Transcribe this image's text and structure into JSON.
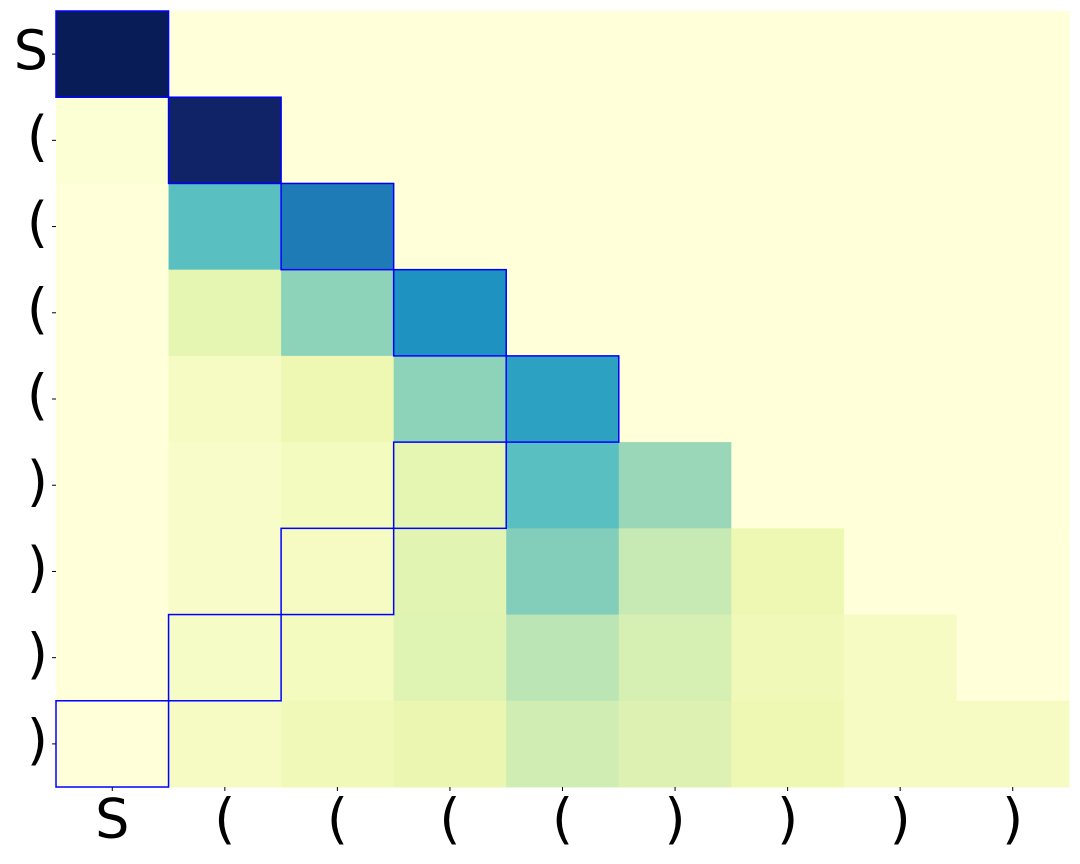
{
  "chart_data": {
    "type": "heatmap",
    "x_categories": [
      "S",
      "(",
      "(",
      "(",
      "(",
      ")",
      ")",
      ")",
      ")"
    ],
    "y_categories": [
      "S",
      "(",
      "(",
      "(",
      "(",
      ")",
      ")",
      ")",
      ")"
    ],
    "values": [
      [
        1.0,
        0,
        0,
        0,
        0,
        0,
        0,
        0,
        0
      ],
      [
        0.02,
        0.97,
        0,
        0,
        0,
        0,
        0,
        0,
        0
      ],
      [
        0.0,
        0.45,
        0.68,
        0,
        0,
        0,
        0,
        0,
        0
      ],
      [
        0.0,
        0.15,
        0.35,
        0.62,
        0,
        0,
        0,
        0,
        0
      ],
      [
        0.0,
        0.07,
        0.12,
        0.35,
        0.57,
        0,
        0,
        0,
        0
      ],
      [
        0.0,
        0.05,
        0.08,
        0.15,
        0.45,
        0.33,
        0,
        0,
        0
      ],
      [
        0.0,
        0.05,
        0.07,
        0.16,
        0.37,
        0.25,
        0.12,
        0,
        0
      ],
      [
        0.0,
        0.06,
        0.08,
        0.17,
        0.27,
        0.2,
        0.1,
        0.07,
        0
      ],
      [
        0.0,
        0.07,
        0.1,
        0.13,
        0.22,
        0.18,
        0.12,
        0.07,
        0.07
      ]
    ],
    "zlim": [
      0,
      1
    ],
    "colormap": "YlGnBu",
    "highlights": [
      [
        0,
        0
      ],
      [
        1,
        1
      ],
      [
        2,
        2
      ],
      [
        3,
        3
      ],
      [
        4,
        4
      ],
      [
        5,
        3
      ],
      [
        6,
        2
      ],
      [
        7,
        1
      ],
      [
        8,
        0
      ]
    ],
    "highlight_color": "#0000ff"
  }
}
